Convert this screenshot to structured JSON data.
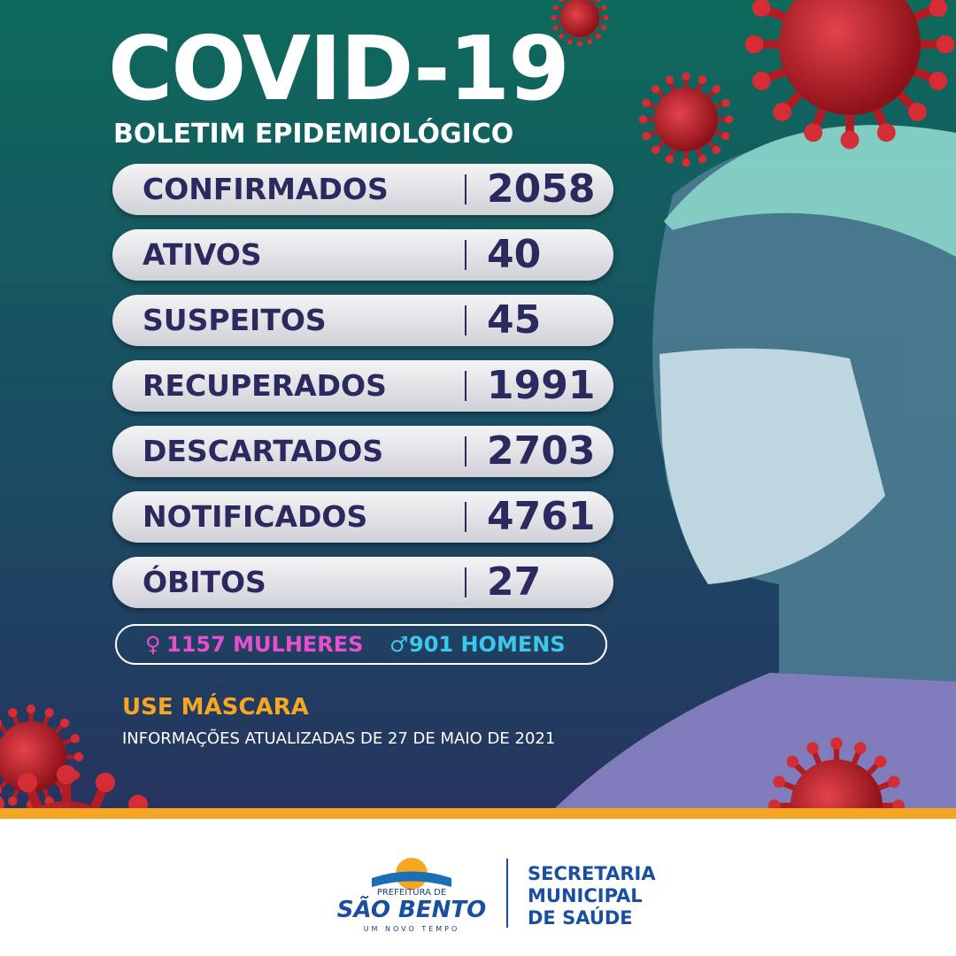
{
  "header": {
    "title": "COVID-19",
    "subtitle": "BOLETIM EPIDEMIOLÓGICO"
  },
  "table": {
    "rows": [
      {
        "label": "CONFIRMADOS",
        "value": 2058
      },
      {
        "label": "ATIVOS",
        "value": 40
      },
      {
        "label": "SUSPEITOS",
        "value": 45
      },
      {
        "label": "RECUPERADOS",
        "value": 1991
      },
      {
        "label": "DESCARTADOS",
        "value": 2703
      },
      {
        "label": "NOTIFICADOS",
        "value": 4761
      },
      {
        "label": "ÓBITOS",
        "value": 27
      }
    ]
  },
  "gender": {
    "women": {
      "count": 1157,
      "label": "MULHERES"
    },
    "men": {
      "count": 901,
      "label": "HOMENS"
    }
  },
  "notice": "USE MÁSCARA",
  "updated": "INFORMAÇÕES ATUALIZADAS DE 27 DE MAIO DE 2021",
  "footer": {
    "logo": {
      "top": "PREFEITURA DE",
      "name": "SÃO BENTO",
      "motto": "UM NOVO TEMPO"
    },
    "department": [
      "SECRETARIA",
      "MUNICIPAL",
      "DE SAÚDE"
    ]
  }
}
